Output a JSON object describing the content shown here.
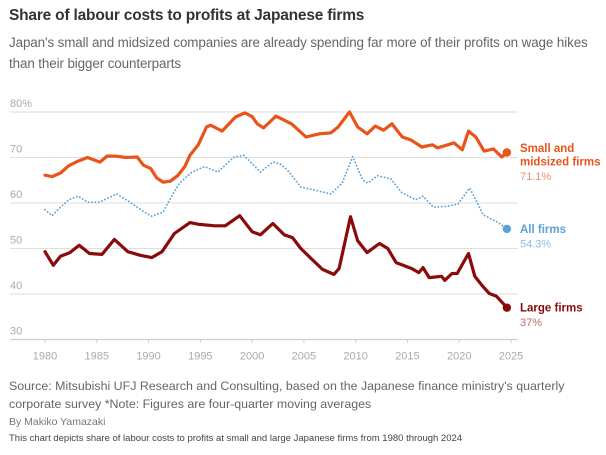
{
  "header": {
    "title": "Share of labour costs to profits at Japanese firms",
    "subtitle": "Japan's small and midsized companies are already spending far more of their profits on wage hikes than their bigger counterparts"
  },
  "footer": {
    "source": "Source: Mitsubishi UFJ Research and Consulting, based on the Japanese finance ministry's quarterly corporate survey *Note: Figures are four-quarter moving averages",
    "byline": "By Makiko Yamazaki",
    "description": "This chart depicts share of labour costs to profits at small and large Japanese firms from 1980 through 2024"
  },
  "chart_data": {
    "type": "line",
    "title": "Share of labour costs to profits at Japanese firms",
    "xlabel": "",
    "ylabel": "",
    "xlim": [
      1979.5,
      2025.5
    ],
    "ylim": [
      30,
      80
    ],
    "grid": true,
    "y_ticks": [
      {
        "value": 80,
        "label": "80%"
      },
      {
        "value": 70,
        "label": "70"
      },
      {
        "value": 60,
        "label": "60"
      },
      {
        "value": 50,
        "label": "50"
      },
      {
        "value": 40,
        "label": "40"
      },
      {
        "value": 30,
        "label": "30"
      }
    ],
    "x_ticks": [
      {
        "value": 1980,
        "label": "1980"
      },
      {
        "value": 1985,
        "label": "1985"
      },
      {
        "value": 1990,
        "label": "1990"
      },
      {
        "value": 1995,
        "label": "1995"
      },
      {
        "value": 2000,
        "label": "2000"
      },
      {
        "value": 2005,
        "label": "2005"
      },
      {
        "value": 2010,
        "label": "2010"
      },
      {
        "value": 2015,
        "label": "2015"
      },
      {
        "value": 2020,
        "label": "2020"
      },
      {
        "value": 2025,
        "label": "2025"
      }
    ],
    "legend": "direct-labels-right",
    "series": [
      {
        "name": "Small and midsized firms",
        "label_lines": [
          "Small and",
          "midsized firms"
        ],
        "end_label": "71.1%",
        "color": "#e8541a",
        "value_color": "#e8906a",
        "style": "solid",
        "x": [
          1980,
          1980.7,
          1981.5,
          1982.3,
          1983.2,
          1984.1,
          1985.3,
          1986.0,
          1986.8,
          1987.8,
          1988.9,
          1989.5,
          1990.2,
          1990.8,
          1991.4,
          1992.1,
          1992.8,
          1993.5,
          1994.0,
          1994.8,
          1995.6,
          1996.0,
          1997.1,
          1998.4,
          1999.3,
          2000.0,
          2000.5,
          2001.1,
          2002.3,
          2003.8,
          2005.2,
          2006.5,
          2007.6,
          2008.3,
          2009.4,
          2010.2,
          2011.1,
          2011.9,
          2012.7,
          2013.5,
          2014.5,
          2015.3,
          2016.4,
          2017.4,
          2017.9,
          2018.9,
          2019.5,
          2020.3,
          2020.9,
          2021.6,
          2022.4,
          2023.3,
          2024.1,
          2024.6
        ],
        "values": [
          66.1,
          65.8,
          66.6,
          68.2,
          69.2,
          70.0,
          69.0,
          70.3,
          70.3,
          70.0,
          70.1,
          68.3,
          67.6,
          65.5,
          64.6,
          64.8,
          66.0,
          68.0,
          70.5,
          72.8,
          76.7,
          77.1,
          75.8,
          78.9,
          79.8,
          79.0,
          77.4,
          76.5,
          79.1,
          77.4,
          74.5,
          75.2,
          75.4,
          76.7,
          80.0,
          76.7,
          75.2,
          76.9,
          76.0,
          77.4,
          74.5,
          73.9,
          72.3,
          72.8,
          72.1,
          72.8,
          73.2,
          71.7,
          75.8,
          74.5,
          71.4,
          71.9,
          70.1,
          71.1
        ]
      },
      {
        "name": "All firms",
        "label_lines": [
          "All firms"
        ],
        "end_label": "54.3%",
        "color": "#5aa2d8",
        "value_color": "#8cbde5",
        "style": "dotted",
        "x": [
          1980,
          1980.7,
          1981.5,
          1982.3,
          1983.2,
          1984.1,
          1985.3,
          1986.9,
          1988.2,
          1989.6,
          1990.3,
          1991.4,
          1992.3,
          1993.0,
          1994.2,
          1995.4,
          1996.7,
          1998.2,
          1999.2,
          2000.8,
          2002.0,
          2002.7,
          2003.4,
          2004.7,
          2005.9,
          2007.6,
          2008.7,
          2009.7,
          2010.7,
          2011.2,
          2012.1,
          2013.4,
          2014.4,
          2015.8,
          2016.5,
          2017.5,
          2018.9,
          2019.9,
          2021.0,
          2021.6,
          2022.3,
          2023.7,
          2024.6
        ],
        "values": [
          58.5,
          57.2,
          59.1,
          60.7,
          61.5,
          60.2,
          60.2,
          62.0,
          60.2,
          58.0,
          57.1,
          58.0,
          61.8,
          64.4,
          66.8,
          68.0,
          66.8,
          70.0,
          70.5,
          66.8,
          69.0,
          68.6,
          67.3,
          63.5,
          62.9,
          62.0,
          64.4,
          70.2,
          65.0,
          64.4,
          66.0,
          65.3,
          62.4,
          60.7,
          61.5,
          59.1,
          59.3,
          59.8,
          63.3,
          60.7,
          57.4,
          55.8,
          54.3
        ]
      },
      {
        "name": "Large firms",
        "label_lines": [
          "Large firms"
        ],
        "end_label": "37%",
        "color": "#8b0a0a",
        "value_color": "#c06a6a",
        "style": "solid",
        "x": [
          1980,
          1980.8,
          1981.5,
          1982.4,
          1983.3,
          1984.3,
          1985.5,
          1986.7,
          1988.0,
          1989.2,
          1990.3,
          1991.3,
          1992.5,
          1994.0,
          1994.9,
          1996.4,
          1997.4,
          1998.8,
          2000.0,
          2000.8,
          2002.0,
          2003.1,
          2003.9,
          2004.7,
          2005.7,
          2006.8,
          2007.9,
          2008.4,
          2009.5,
          2010.2,
          2011.1,
          2012.3,
          2013.1,
          2013.9,
          2015.4,
          2016.1,
          2016.5,
          2017.1,
          2018.3,
          2018.6,
          2019.3,
          2019.8,
          2020.9,
          2021.5,
          2022.2,
          2022.9,
          2023.6,
          2024.6
        ],
        "values": [
          49.3,
          46.3,
          48.3,
          49.1,
          50.7,
          48.9,
          48.7,
          52.0,
          49.3,
          48.5,
          48.0,
          49.3,
          53.3,
          55.7,
          55.3,
          55.0,
          55.0,
          57.2,
          53.7,
          53.0,
          55.5,
          53.0,
          52.4,
          50.0,
          47.8,
          45.4,
          44.3,
          45.6,
          57.0,
          51.7,
          49.1,
          51.1,
          50.0,
          46.9,
          45.6,
          44.7,
          45.8,
          43.6,
          43.9,
          43.0,
          44.5,
          44.5,
          48.9,
          43.9,
          41.9,
          40.1,
          39.5,
          37.0
        ]
      }
    ]
  }
}
